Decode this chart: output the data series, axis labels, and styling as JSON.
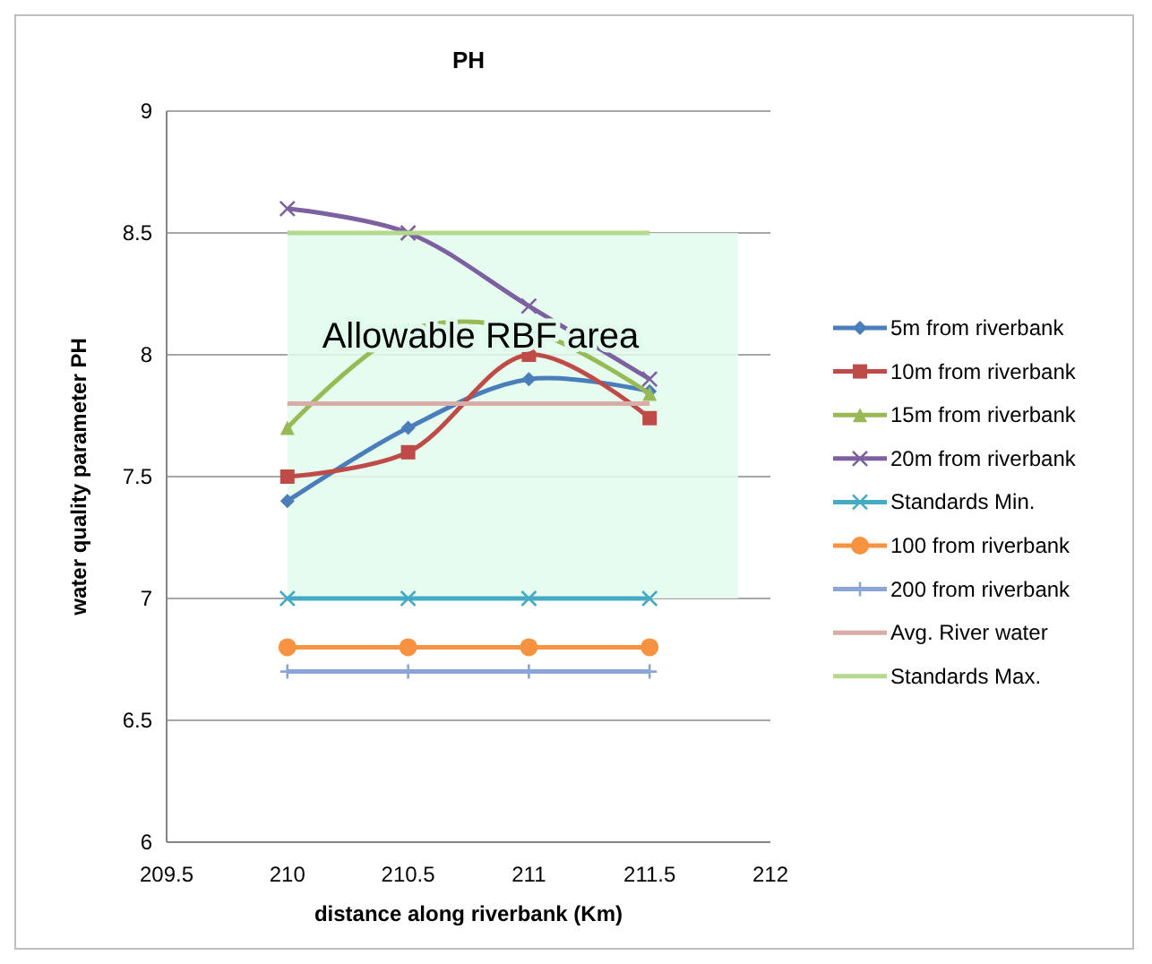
{
  "chart_data": {
    "type": "line",
    "title": "PH",
    "xlabel": "distance along riverbank (Km)",
    "ylabel": "water quality parameter PH",
    "x": [
      210,
      210.5,
      211,
      211.5
    ],
    "xlim": [
      209.5,
      212
    ],
    "xticks": [
      209.5,
      210,
      210.5,
      211,
      211.5,
      212
    ],
    "ylim": [
      6,
      9
    ],
    "yticks": [
      6,
      6.5,
      7,
      7.5,
      8,
      8.5,
      9
    ],
    "grid": "y",
    "legend": "right",
    "bands": [
      {
        "axis": "y",
        "from": 7,
        "to": 8.5,
        "label": "Allowable RBF area",
        "color": "#e0fbec"
      }
    ],
    "series": [
      {
        "name": "5m from riverbank",
        "color": "#4a7ebb",
        "marker": "diamond",
        "values": [
          7.4,
          7.7,
          7.9,
          7.85
        ]
      },
      {
        "name": "10m from riverbank",
        "color": "#be4b48",
        "marker": "square",
        "values": [
          7.5,
          7.6,
          8.0,
          7.74
        ]
      },
      {
        "name": "15m from riverbank",
        "color": "#98b954",
        "marker": "triangle",
        "values": [
          7.7,
          8.1,
          8.1,
          7.84
        ]
      },
      {
        "name": "20m from riverbank",
        "color": "#7d60a0",
        "marker": "cross",
        "values": [
          8.6,
          8.5,
          8.2,
          7.9
        ]
      },
      {
        "name": "Standards Min.",
        "color": "#46aac5",
        "marker": "cross",
        "values": [
          7,
          7,
          7,
          7
        ]
      },
      {
        "name": "100 from riverbank",
        "color": "#f69240",
        "marker": "circle",
        "values": [
          6.8,
          6.8,
          6.8,
          6.8
        ]
      },
      {
        "name": "200 from riverbank",
        "color": "#8aa5d6",
        "marker": "plus",
        "values": [
          6.7,
          6.7,
          6.7,
          6.7
        ]
      },
      {
        "name": "Avg. River water",
        "color": "#d9aca8",
        "marker": "none",
        "values": [
          7.8,
          7.8,
          7.8,
          7.8
        ]
      },
      {
        "name": "Standards Max.",
        "color": "#b4d98d",
        "marker": "none",
        "values": [
          8.5,
          8.5,
          8.5,
          8.5
        ]
      }
    ]
  }
}
